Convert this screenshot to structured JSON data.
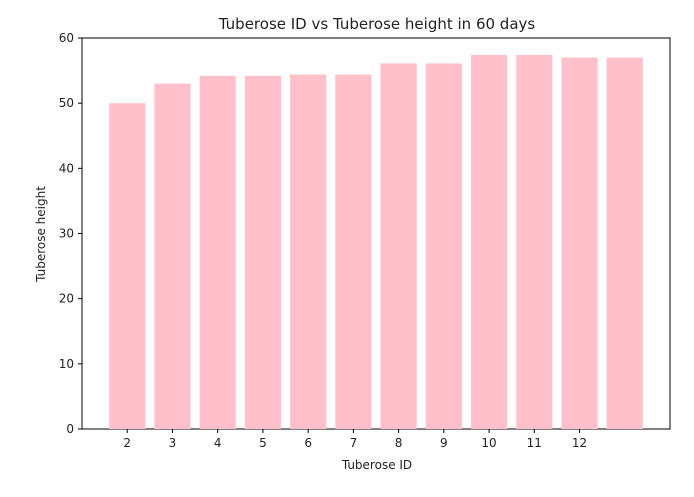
{
  "chart_data": {
    "type": "bar",
    "title": "Tuberose ID vs Tuberose height in 60 days",
    "xlabel": "Tuberose ID",
    "ylabel": "Tuberose height",
    "categories": [
      "2",
      "3",
      "4",
      "5",
      "6",
      "7",
      "8",
      "9",
      "10",
      "11",
      "12",
      ""
    ],
    "values": [
      50,
      53,
      54.2,
      54.2,
      54.4,
      54.4,
      56.1,
      56.1,
      57.4,
      57.4,
      57,
      57
    ],
    "ylim": [
      0,
      60
    ],
    "yticks": [
      0,
      10,
      20,
      30,
      40,
      50,
      60
    ],
    "xlim": [
      1,
      14
    ],
    "bar_color": "#ffc0cb",
    "grid": false,
    "legend": false
  }
}
